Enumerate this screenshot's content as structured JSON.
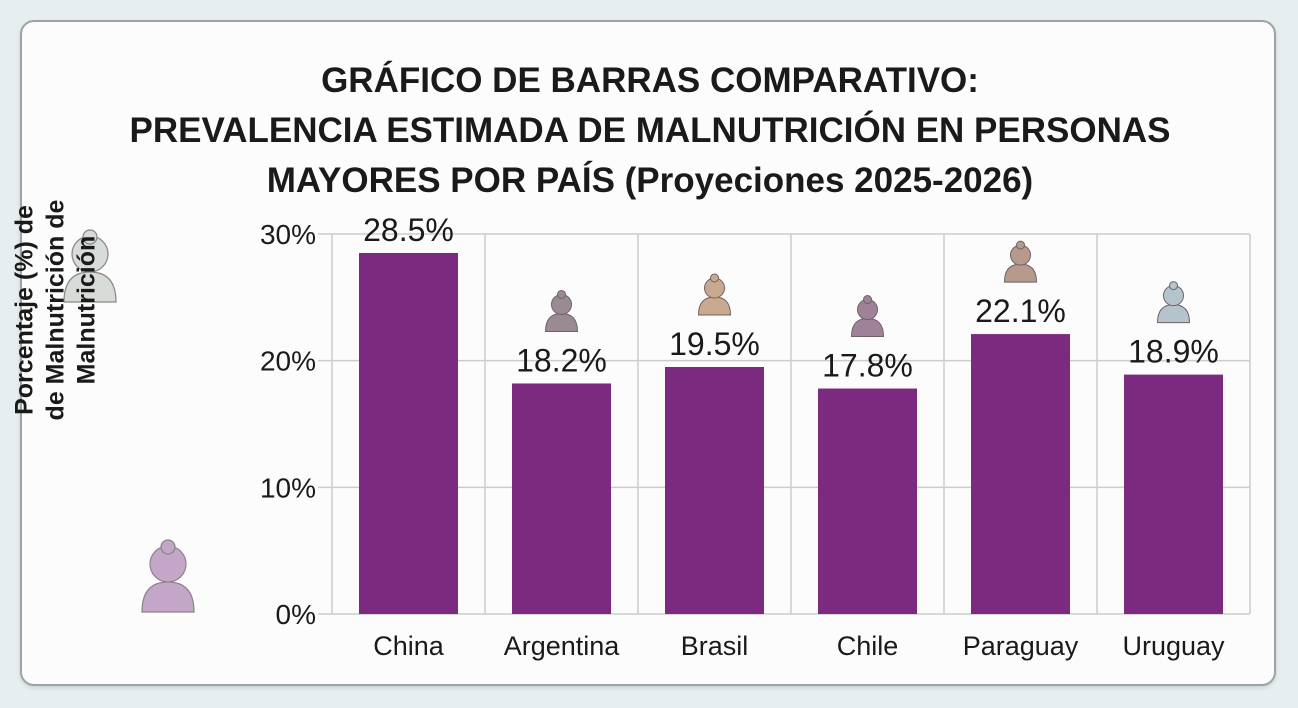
{
  "chart_data": {
    "type": "bar",
    "title_lines": [
      "GRÁFICO DE BARRAS COMPARATIVO:",
      "PREVALENCIA ESTIMADA DE MALNUTRICIÓN EN PERSONAS",
      "MAYORES POR PAÍS (Proyeciones 2025-2026)"
    ],
    "ylabel_lines": [
      "Porcentaje (%) de",
      "de Malnutrición de",
      "Malnutrición"
    ],
    "categories": [
      "China",
      "Argentina",
      "Brasil",
      "Chile",
      "Paraguay",
      "Uruguay"
    ],
    "values": [
      28.5,
      18.2,
      19.5,
      17.8,
      22.1,
      18.9
    ],
    "value_labels": [
      "28.5%",
      "18.2%",
      "19.5%",
      "17.8%",
      "22.1%",
      "18.9%"
    ],
    "yticks": [
      0,
      10,
      20,
      30
    ],
    "ytick_labels": [
      "0%",
      "10%",
      "20%",
      "30%"
    ],
    "ylim": [
      0,
      30
    ],
    "grid": true,
    "bar_color": "#7b2a7f",
    "icon_colors": [
      "#b8a0b0",
      "#9a8a94",
      "#c8a88e",
      "#a08298",
      "#b89a8c",
      "#b4c4cc"
    ]
  },
  "decor": {
    "side_icons": [
      "elderly-woman-icon",
      "elderly-woman-worried-icon"
    ],
    "side_icon_colors": [
      "#d8dcd8",
      "#c4a6c8"
    ]
  }
}
